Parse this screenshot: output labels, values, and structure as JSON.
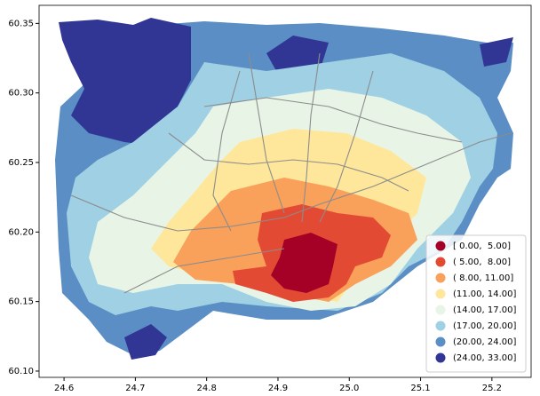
{
  "chart_data": {
    "type": "map",
    "xlim": [
      24.565,
      25.255
    ],
    "ylim": [
      60.0955,
      60.363
    ],
    "xticks": [
      24.6,
      24.7,
      24.8,
      24.9,
      {
        "value": 25.0,
        "label": "25.0"
      },
      25.1,
      25.2
    ],
    "yticks": [
      {
        "value": 60.1,
        "label": "60.10"
      },
      60.15,
      {
        "value": 60.2,
        "label": "60.20"
      },
      60.25,
      {
        "value": 60.3,
        "label": "60.30"
      },
      60.35
    ],
    "legend_position": "lower right",
    "legend": [
      {
        "label": "[ 0.00,  5.00]",
        "color": "#a50026"
      },
      {
        "label": "( 5.00,  8.00]",
        "color": "#e34a33"
      },
      {
        "label": "( 8.00, 11.00]",
        "color": "#f9a05a"
      },
      {
        "label": "(11.00, 14.00]",
        "color": "#fee79b"
      },
      {
        "label": "(14.00, 17.00]",
        "color": "#e8f5e6"
      },
      {
        "label": "(17.00, 20.00]",
        "color": "#9fd0e4"
      },
      {
        "label": "(20.00, 24.00]",
        "color": "#5a8ec4"
      },
      {
        "label": "(24.00, 33.00]",
        "color": "#313695"
      }
    ]
  }
}
